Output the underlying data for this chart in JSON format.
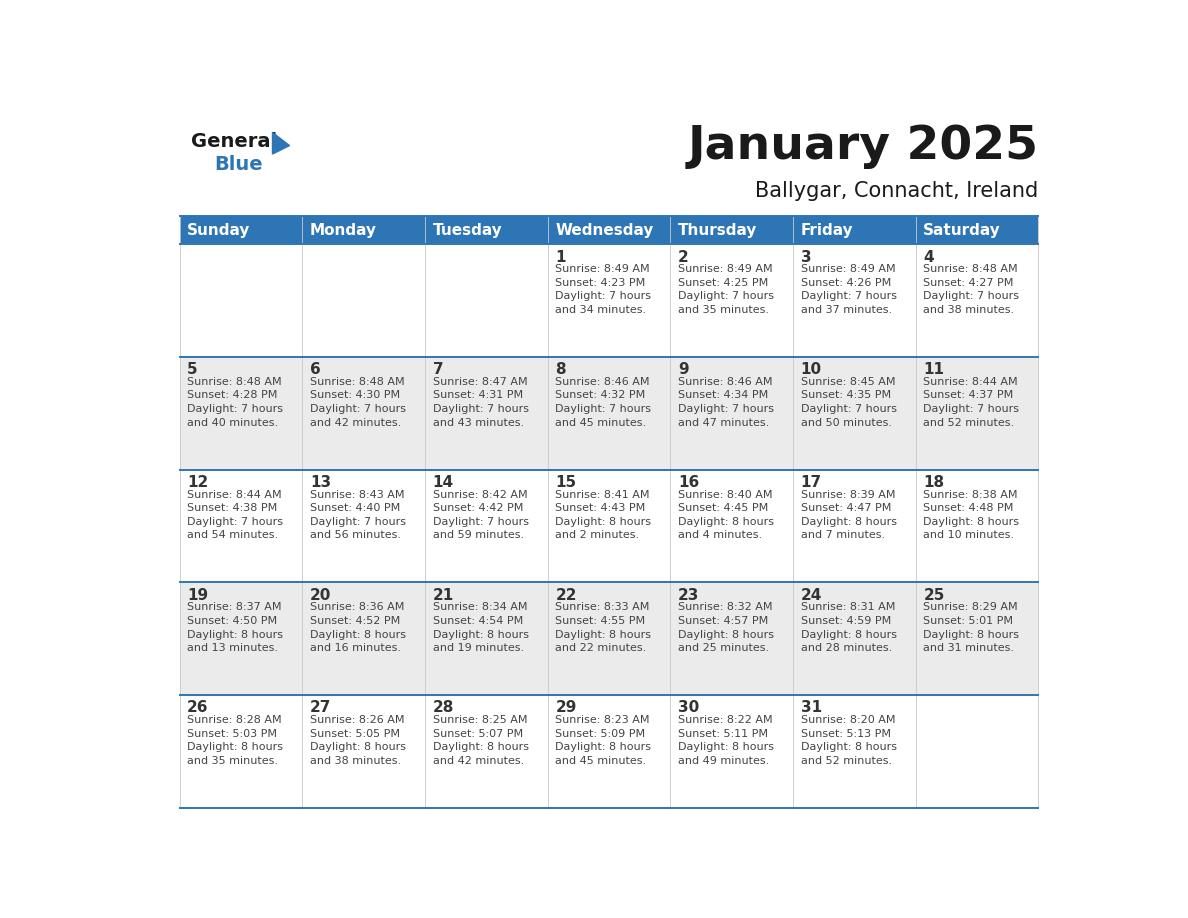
{
  "title": "January 2025",
  "subtitle": "Ballygar, Connacht, Ireland",
  "header_color": "#2e75b6",
  "header_text_color": "#ffffff",
  "cell_bg_alt": "#ebebeb",
  "cell_bg_norm": "#ffffff",
  "day_text_color": "#333333",
  "info_text_color": "#444444",
  "divider_color": "#2e75b6",
  "days_of_week": [
    "Sunday",
    "Monday",
    "Tuesday",
    "Wednesday",
    "Thursday",
    "Friday",
    "Saturday"
  ],
  "calendar": [
    [
      {
        "day": null,
        "info": null
      },
      {
        "day": null,
        "info": null
      },
      {
        "day": null,
        "info": null
      },
      {
        "day": "1",
        "info": "Sunrise: 8:49 AM\nSunset: 4:23 PM\nDaylight: 7 hours\nand 34 minutes."
      },
      {
        "day": "2",
        "info": "Sunrise: 8:49 AM\nSunset: 4:25 PM\nDaylight: 7 hours\nand 35 minutes."
      },
      {
        "day": "3",
        "info": "Sunrise: 8:49 AM\nSunset: 4:26 PM\nDaylight: 7 hours\nand 37 minutes."
      },
      {
        "day": "4",
        "info": "Sunrise: 8:48 AM\nSunset: 4:27 PM\nDaylight: 7 hours\nand 38 minutes."
      }
    ],
    [
      {
        "day": "5",
        "info": "Sunrise: 8:48 AM\nSunset: 4:28 PM\nDaylight: 7 hours\nand 40 minutes."
      },
      {
        "day": "6",
        "info": "Sunrise: 8:48 AM\nSunset: 4:30 PM\nDaylight: 7 hours\nand 42 minutes."
      },
      {
        "day": "7",
        "info": "Sunrise: 8:47 AM\nSunset: 4:31 PM\nDaylight: 7 hours\nand 43 minutes."
      },
      {
        "day": "8",
        "info": "Sunrise: 8:46 AM\nSunset: 4:32 PM\nDaylight: 7 hours\nand 45 minutes."
      },
      {
        "day": "9",
        "info": "Sunrise: 8:46 AM\nSunset: 4:34 PM\nDaylight: 7 hours\nand 47 minutes."
      },
      {
        "day": "10",
        "info": "Sunrise: 8:45 AM\nSunset: 4:35 PM\nDaylight: 7 hours\nand 50 minutes."
      },
      {
        "day": "11",
        "info": "Sunrise: 8:44 AM\nSunset: 4:37 PM\nDaylight: 7 hours\nand 52 minutes."
      }
    ],
    [
      {
        "day": "12",
        "info": "Sunrise: 8:44 AM\nSunset: 4:38 PM\nDaylight: 7 hours\nand 54 minutes."
      },
      {
        "day": "13",
        "info": "Sunrise: 8:43 AM\nSunset: 4:40 PM\nDaylight: 7 hours\nand 56 minutes."
      },
      {
        "day": "14",
        "info": "Sunrise: 8:42 AM\nSunset: 4:42 PM\nDaylight: 7 hours\nand 59 minutes."
      },
      {
        "day": "15",
        "info": "Sunrise: 8:41 AM\nSunset: 4:43 PM\nDaylight: 8 hours\nand 2 minutes."
      },
      {
        "day": "16",
        "info": "Sunrise: 8:40 AM\nSunset: 4:45 PM\nDaylight: 8 hours\nand 4 minutes."
      },
      {
        "day": "17",
        "info": "Sunrise: 8:39 AM\nSunset: 4:47 PM\nDaylight: 8 hours\nand 7 minutes."
      },
      {
        "day": "18",
        "info": "Sunrise: 8:38 AM\nSunset: 4:48 PM\nDaylight: 8 hours\nand 10 minutes."
      }
    ],
    [
      {
        "day": "19",
        "info": "Sunrise: 8:37 AM\nSunset: 4:50 PM\nDaylight: 8 hours\nand 13 minutes."
      },
      {
        "day": "20",
        "info": "Sunrise: 8:36 AM\nSunset: 4:52 PM\nDaylight: 8 hours\nand 16 minutes."
      },
      {
        "day": "21",
        "info": "Sunrise: 8:34 AM\nSunset: 4:54 PM\nDaylight: 8 hours\nand 19 minutes."
      },
      {
        "day": "22",
        "info": "Sunrise: 8:33 AM\nSunset: 4:55 PM\nDaylight: 8 hours\nand 22 minutes."
      },
      {
        "day": "23",
        "info": "Sunrise: 8:32 AM\nSunset: 4:57 PM\nDaylight: 8 hours\nand 25 minutes."
      },
      {
        "day": "24",
        "info": "Sunrise: 8:31 AM\nSunset: 4:59 PM\nDaylight: 8 hours\nand 28 minutes."
      },
      {
        "day": "25",
        "info": "Sunrise: 8:29 AM\nSunset: 5:01 PM\nDaylight: 8 hours\nand 31 minutes."
      }
    ],
    [
      {
        "day": "26",
        "info": "Sunrise: 8:28 AM\nSunset: 5:03 PM\nDaylight: 8 hours\nand 35 minutes."
      },
      {
        "day": "27",
        "info": "Sunrise: 8:26 AM\nSunset: 5:05 PM\nDaylight: 8 hours\nand 38 minutes."
      },
      {
        "day": "28",
        "info": "Sunrise: 8:25 AM\nSunset: 5:07 PM\nDaylight: 8 hours\nand 42 minutes."
      },
      {
        "day": "29",
        "info": "Sunrise: 8:23 AM\nSunset: 5:09 PM\nDaylight: 8 hours\nand 45 minutes."
      },
      {
        "day": "30",
        "info": "Sunrise: 8:22 AM\nSunset: 5:11 PM\nDaylight: 8 hours\nand 49 minutes."
      },
      {
        "day": "31",
        "info": "Sunrise: 8:20 AM\nSunset: 5:13 PM\nDaylight: 8 hours\nand 52 minutes."
      },
      {
        "day": null,
        "info": null
      }
    ]
  ],
  "logo_general_color": "#1a1a1a",
  "logo_blue_color": "#2e75b6",
  "logo_triangle_color": "#2e75b6"
}
